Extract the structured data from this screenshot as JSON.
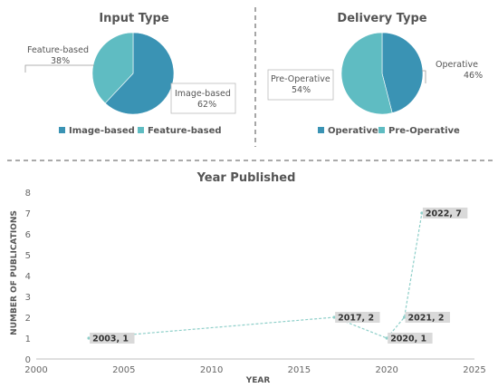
{
  "chart_data": [
    {
      "type": "pie",
      "title": "Input Type",
      "categories": [
        "Image-based",
        "Feature-based"
      ],
      "values": [
        62,
        38
      ],
      "labels": [
        "Image-based\n62%",
        "Feature-based\n38%"
      ],
      "legend": [
        "Image-based",
        "Feature-based"
      ],
      "colors": [
        "#3a93b4",
        "#5fbcc2"
      ],
      "legend_position": "bottom"
    },
    {
      "type": "pie",
      "title": "Delivery Type",
      "categories": [
        "Operative",
        "Pre-Operative"
      ],
      "values": [
        46,
        54
      ],
      "labels": [
        "Operative\n46%",
        "Pre-Operative\n54%"
      ],
      "legend": [
        "Operative",
        "Pre-Operative"
      ],
      "colors": [
        "#3a93b4",
        "#5fbcc2"
      ],
      "legend_position": "bottom"
    },
    {
      "type": "line",
      "title": "Year Published",
      "xlabel": "YEAR",
      "ylabel": "NUMBER OF PUBLICATIONS",
      "xlim": [
        2000,
        2025
      ],
      "ylim": [
        0,
        8
      ],
      "x_ticks": [
        2000,
        2005,
        2010,
        2015,
        2020,
        2025
      ],
      "y_ticks": [
        0,
        1,
        2,
        3,
        4,
        5,
        6,
        7,
        8
      ],
      "series": [
        {
          "x": [
            2003,
            2017,
            2020,
            2021,
            2022
          ],
          "y": [
            1,
            2,
            1,
            2,
            7
          ]
        }
      ],
      "data_labels": [
        "2003, 1",
        "2017, 2",
        "2020, 1",
        "2021, 2",
        "2022, 7"
      ],
      "line_style": "dashed",
      "color": "#8ecfc9",
      "label_background": "#d9d9d9"
    }
  ]
}
